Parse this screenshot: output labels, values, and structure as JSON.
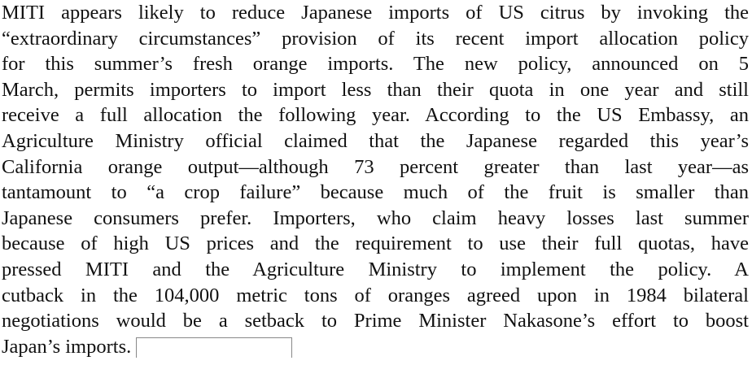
{
  "paragraph": {
    "lines": [
      "MITI appears likely to reduce Japanese imports of US citrus by invoking the",
      "“extraordinary circumstances” provision of its recent import allocation policy",
      "for this summer’s fresh orange imports. The new policy, announced on 5",
      "March, permits importers to import less than their quota in one year and still",
      "receive a full allocation the following year. According to the US Embassy, an",
      "Agriculture Ministry official claimed that the Japanese regarded this year’s",
      "California orange output—although 73 percent greater than last year—as",
      "tantamount to “a crop failure” because much of the fruit is smaller than",
      "Japanese consumers prefer. Importers, who claim heavy losses last summer",
      "because of high US prices and the requirement to use their full quotas, have",
      "pressed MITI and the Agriculture Ministry to implement the policy. A",
      "cutback in the 104,000 metric tons of oranges agreed upon in 1984 bilateral",
      "negotiations would be a setback to Prime Minister Nakasone’s effort to boost",
      "Japan’s imports."
    ]
  }
}
